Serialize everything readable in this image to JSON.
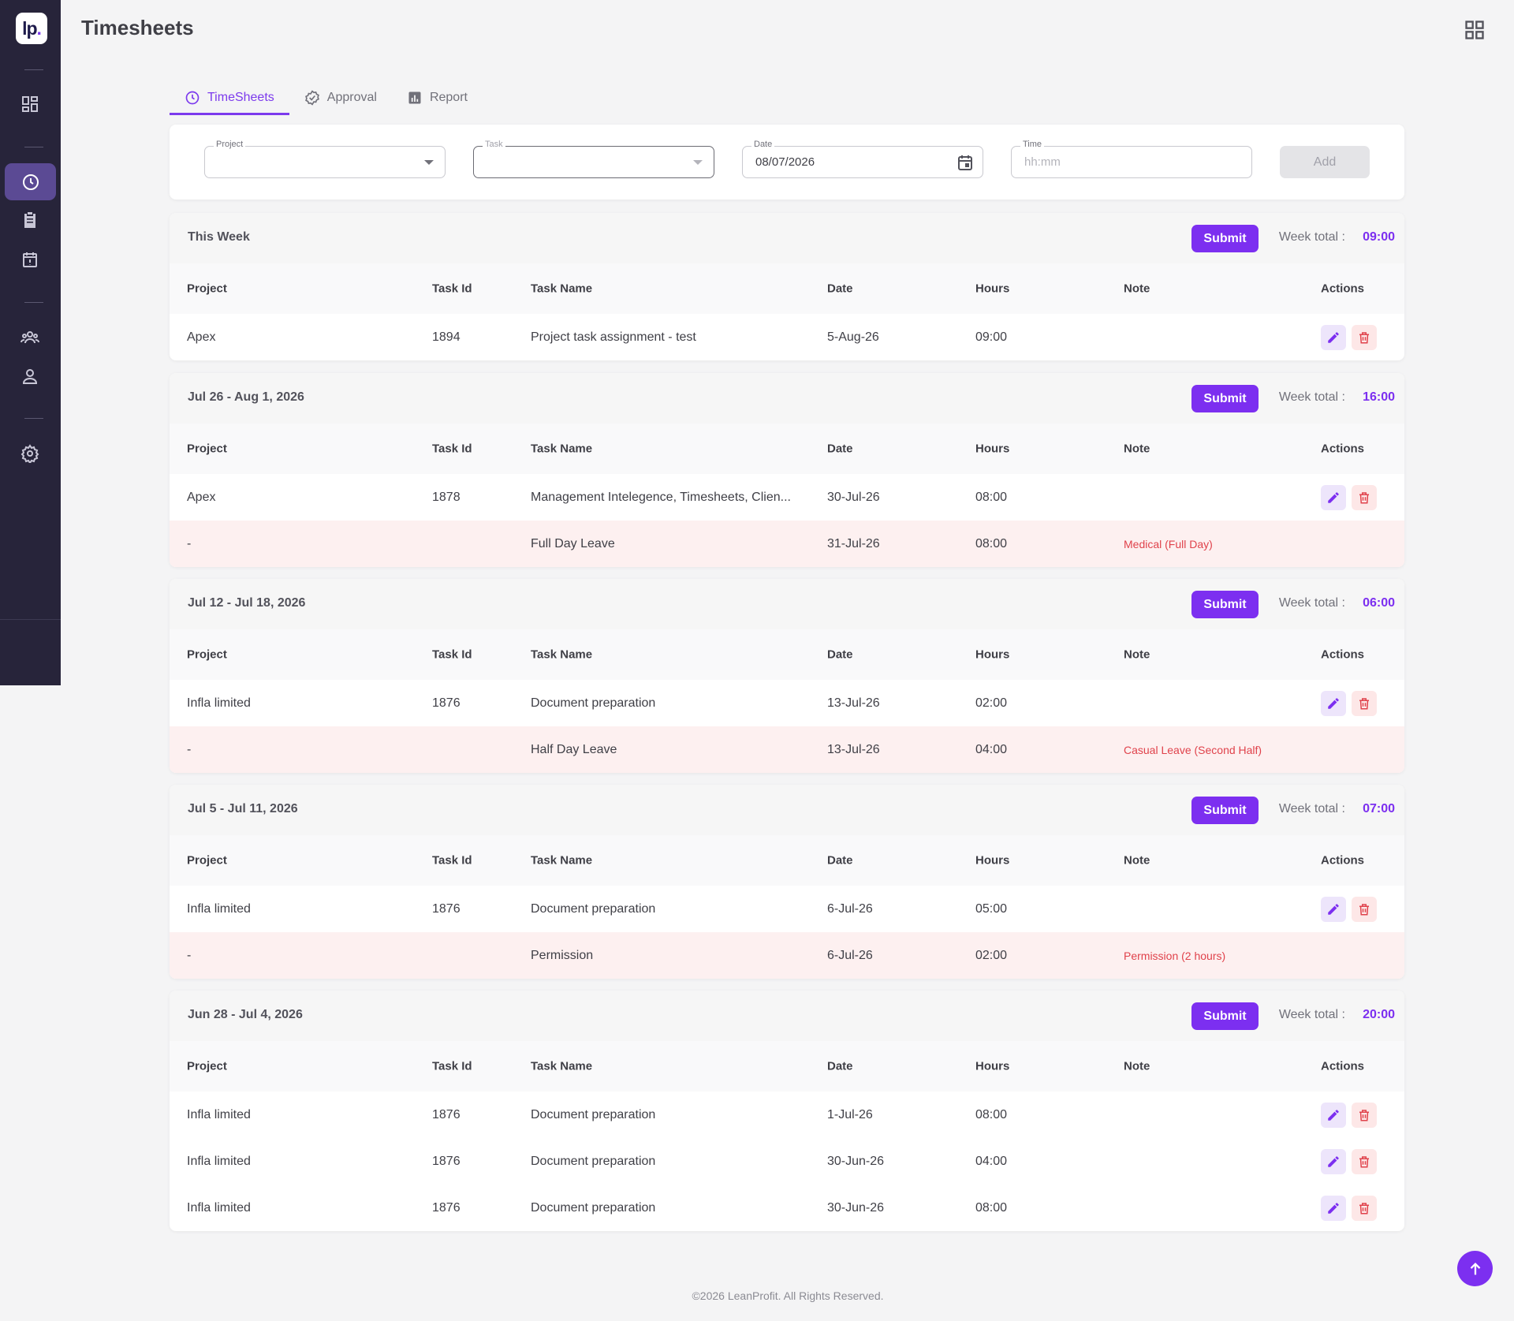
{
  "app": {
    "logo_text": "lp",
    "logo_dot": "."
  },
  "header": {
    "title": "Timesheets"
  },
  "tabs": [
    {
      "label": "TimeSheets",
      "icon": "clock-icon",
      "active": true
    },
    {
      "label": "Approval",
      "icon": "badge-check-icon",
      "active": false
    },
    {
      "label": "Report",
      "icon": "bar-chart-icon",
      "active": false
    }
  ],
  "form": {
    "project_label": "Project",
    "task_label": "Task",
    "date_label": "Date",
    "date_value": "08/07/2026",
    "time_label": "Time",
    "time_placeholder": "hh:mm",
    "add_label": "Add"
  },
  "columns": {
    "project": "Project",
    "task_id": "Task Id",
    "task_name": "Task Name",
    "date": "Date",
    "hours": "Hours",
    "note": "Note",
    "actions": "Actions"
  },
  "labels": {
    "submit": "Submit",
    "week_total": "Week total :"
  },
  "weeks": [
    {
      "range": "This Week",
      "total": "09:00",
      "rows": [
        {
          "project": "Apex",
          "task_id": "1894",
          "task_name": "Project task assignment - test",
          "date": "5-Aug-26",
          "hours": "09:00",
          "note": "",
          "leave": false
        }
      ]
    },
    {
      "range": "Jul 26 - Aug 1, 2026",
      "total": "16:00",
      "rows": [
        {
          "project": "Apex",
          "task_id": "1878",
          "task_name": "Management Intelegence, Timesheets, Clien...",
          "date": "30-Jul-26",
          "hours": "08:00",
          "note": "",
          "leave": false
        },
        {
          "project": "-",
          "task_id": "",
          "task_name": "Full Day Leave",
          "date": "31-Jul-26",
          "hours": "08:00",
          "note": "Medical (Full Day)",
          "leave": true
        }
      ]
    },
    {
      "range": "Jul 12 - Jul 18, 2026",
      "total": "06:00",
      "rows": [
        {
          "project": "Infla limited",
          "task_id": "1876",
          "task_name": "Document preparation",
          "date": "13-Jul-26",
          "hours": "02:00",
          "note": "",
          "leave": false
        },
        {
          "project": "-",
          "task_id": "",
          "task_name": "Half Day Leave",
          "date": "13-Jul-26",
          "hours": "04:00",
          "note": "Casual Leave (Second Half)",
          "leave": true
        }
      ]
    },
    {
      "range": "Jul 5 - Jul 11, 2026",
      "total": "07:00",
      "rows": [
        {
          "project": "Infla limited",
          "task_id": "1876",
          "task_name": "Document preparation",
          "date": "6-Jul-26",
          "hours": "05:00",
          "note": "",
          "leave": false
        },
        {
          "project": "-",
          "task_id": "",
          "task_name": "Permission",
          "date": "6-Jul-26",
          "hours": "02:00",
          "note": "Permission (2 hours)",
          "leave": true
        }
      ]
    },
    {
      "range": "Jun 28 - Jul 4, 2026",
      "total": "20:00",
      "rows": [
        {
          "project": "Infla limited",
          "task_id": "1876",
          "task_name": "Document preparation",
          "date": "1-Jul-26",
          "hours": "08:00",
          "note": "",
          "leave": false
        },
        {
          "project": "Infla limited",
          "task_id": "1876",
          "task_name": "Document preparation",
          "date": "30-Jun-26",
          "hours": "04:00",
          "note": "",
          "leave": false
        },
        {
          "project": "Infla limited",
          "task_id": "1876",
          "task_name": "Document preparation",
          "date": "30-Jun-26",
          "hours": "08:00",
          "note": "",
          "leave": false
        }
      ]
    }
  ],
  "footer": {
    "text": "©2026 LeanProfit. All Rights Reserved."
  },
  "colors": {
    "accent": "#7c2ff0",
    "sidebar": "#27243a",
    "leave_row": "#fdf0f0",
    "leave_note": "#e0424b"
  }
}
